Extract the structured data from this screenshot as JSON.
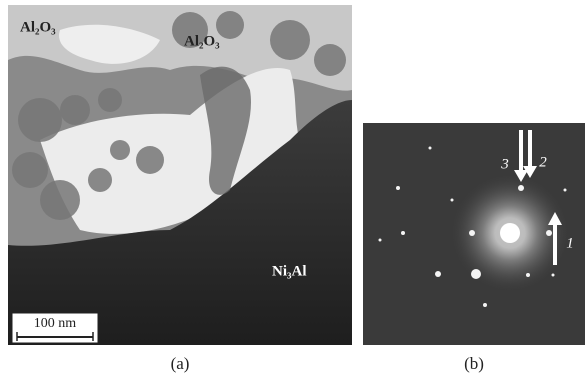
{
  "figure": {
    "panel_a": {
      "labels": [
        "Al₂O₃",
        "Al₂O₃",
        "Ni₃Al"
      ],
      "scale_bar": "100 nm",
      "caption": "(a)"
    },
    "panel_b": {
      "arrow_labels": [
        "3",
        "2",
        "1"
      ],
      "caption": "(b)"
    }
  }
}
